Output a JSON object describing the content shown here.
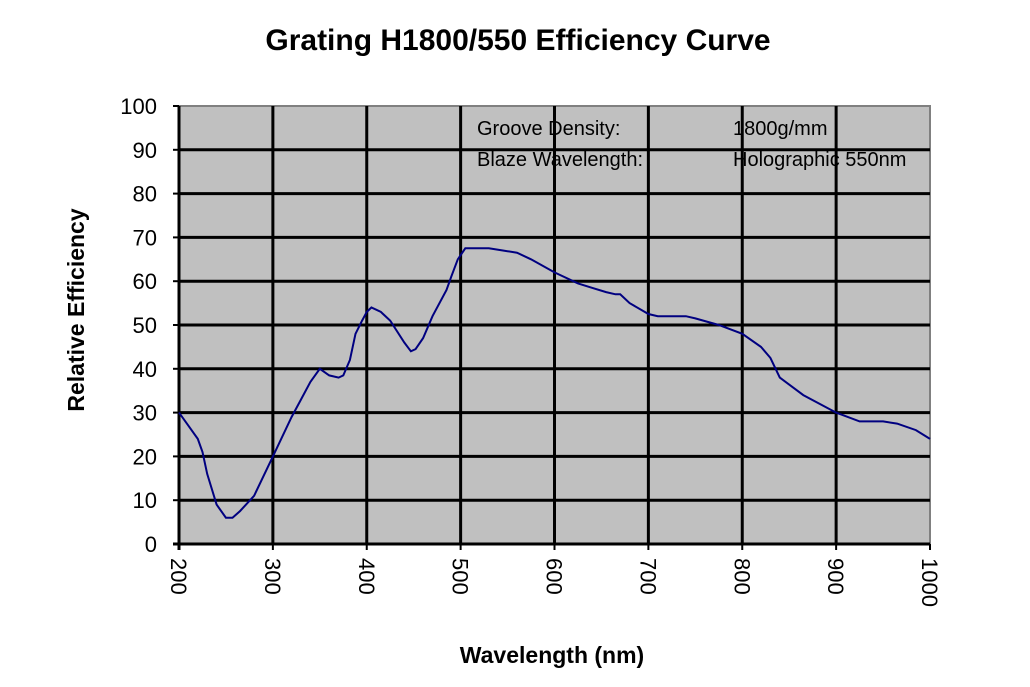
{
  "chart_data": {
    "type": "line",
    "title": "Grating H1800/550 Efficiency Curve",
    "xlabel": "Wavelength (nm)",
    "ylabel": "Relative Efficiency",
    "xlim": [
      200,
      1000
    ],
    "ylim": [
      0,
      100
    ],
    "xticks": [
      200,
      300,
      400,
      500,
      600,
      700,
      800,
      900,
      1000
    ],
    "yticks": [
      0,
      10,
      20,
      30,
      40,
      50,
      60,
      70,
      80,
      90,
      100
    ],
    "grid": true,
    "background": "#c0c0c0",
    "line_color": "#000080",
    "annotations": [
      {
        "label": "Groove Density:",
        "value": "1800g/mm"
      },
      {
        "label": "Blaze Wavelength:",
        "value": "Holographic 550nm"
      }
    ],
    "series": [
      {
        "name": "Efficiency",
        "x": [
          200,
          210,
          220,
          225,
          230,
          240,
          250,
          257,
          265,
          280,
          300,
          320,
          330,
          340,
          350,
          360,
          370,
          375,
          382,
          388,
          395,
          400,
          405,
          415,
          425,
          440,
          447,
          452,
          460,
          470,
          485,
          490,
          497,
          505,
          530,
          545,
          560,
          575,
          600,
          625,
          640,
          655,
          665,
          670,
          680,
          700,
          710,
          740,
          750,
          775,
          800,
          820,
          830,
          840,
          865,
          900,
          925,
          950,
          965,
          985,
          1000
        ],
        "y": [
          30,
          27,
          24,
          21,
          16,
          9,
          6,
          6,
          7.5,
          11,
          20,
          29,
          33,
          37,
          40,
          38.5,
          38,
          38.5,
          42,
          48,
          51,
          53,
          54,
          53,
          51,
          46,
          44,
          44.5,
          47,
          52,
          58,
          61,
          65,
          67.5,
          67.5,
          67,
          66.5,
          65,
          62,
          59.5,
          58.5,
          57.5,
          57,
          57,
          55,
          52.5,
          52,
          52,
          51.5,
          50,
          48,
          45,
          42.5,
          38,
          34,
          30,
          28,
          28,
          27.5,
          26,
          24
        ]
      }
    ]
  }
}
